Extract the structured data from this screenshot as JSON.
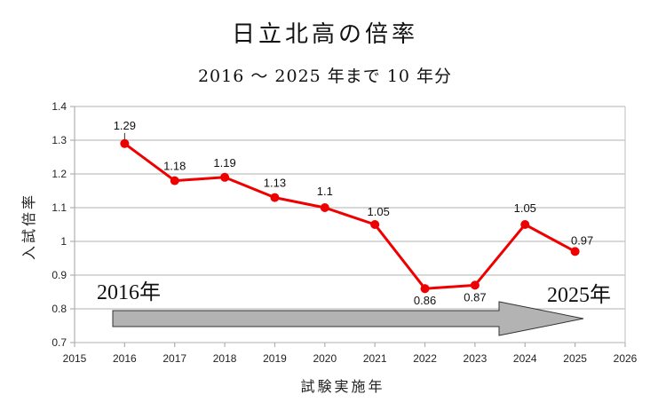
{
  "chart_data": {
    "type": "line",
    "title": "日立北高の倍率",
    "subtitle": "2016 ～ 2025 年まで 10 年分",
    "xlabel": "試験実施年",
    "ylabel": "入試倍率",
    "x": [
      2016,
      2017,
      2018,
      2019,
      2020,
      2021,
      2022,
      2023,
      2024,
      2025
    ],
    "series": [
      {
        "name": "入試倍率",
        "color": "#ee0000",
        "values": [
          1.29,
          1.18,
          1.19,
          1.13,
          1.1,
          1.05,
          0.86,
          0.87,
          1.05,
          0.97
        ],
        "labels": [
          "1.29",
          "1.18",
          "1.19",
          "1.13",
          "1.1",
          "1.05",
          "0.86",
          "0.87",
          "1.05",
          "0.97"
        ]
      }
    ],
    "xlim": [
      2015,
      2026
    ],
    "ylim": [
      0.7,
      1.4
    ],
    "x_ticks": [
      "2015",
      "2016",
      "2017",
      "2018",
      "2019",
      "2020",
      "2021",
      "2022",
      "2023",
      "2024",
      "2025",
      "2026"
    ],
    "y_ticks": [
      "0.7",
      "0.8",
      "0.9",
      "1",
      "1.1",
      "1.2",
      "1.3",
      "1.4"
    ],
    "grid": true,
    "legend": "none",
    "annotations": {
      "start_label": "2016年",
      "end_label": "2025年",
      "arrow": {
        "from": "2016年",
        "to": "2025年",
        "color": "#b3b3b3"
      }
    }
  }
}
